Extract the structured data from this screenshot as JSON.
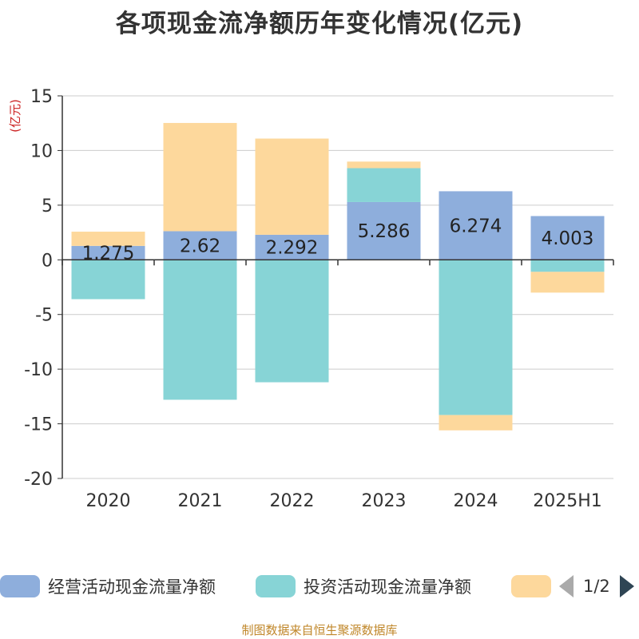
{
  "chart_data": {
    "type": "bar",
    "stacked": true,
    "title": "各项现金流净额历年变化情况(亿元)",
    "unit_label": "(亿元)",
    "categories": [
      "2020",
      "2021",
      "2022",
      "2023",
      "2024",
      "2025H1"
    ],
    "ylim": [
      -20,
      15
    ],
    "yticks": [
      15,
      10,
      5,
      0,
      -5,
      -10,
      -15,
      -20
    ],
    "grid": true,
    "series": [
      {
        "name": "经营活动现金流量净额",
        "color": "#8eaedc",
        "values": [
          1.275,
          2.62,
          2.292,
          5.286,
          6.274,
          4.003
        ]
      },
      {
        "name": "投资活动现金流量净额",
        "color": "#87d4d6",
        "values": [
          -3.6,
          -12.8,
          -11.2,
          3.1,
          -14.2,
          -1.1
        ]
      },
      {
        "name": "",
        "color": "#fdd89c",
        "values": [
          1.3,
          9.9,
          8.8,
          0.6,
          -1.4,
          -1.9
        ]
      }
    ],
    "data_labels": [
      "1.275",
      "2.62",
      "2.292",
      "5.286",
      "6.274",
      "4.003"
    ],
    "legend": {
      "position": "bottom",
      "page": "1/2"
    }
  },
  "footer": {
    "source": "制图数据来自恒生聚源数据库"
  }
}
